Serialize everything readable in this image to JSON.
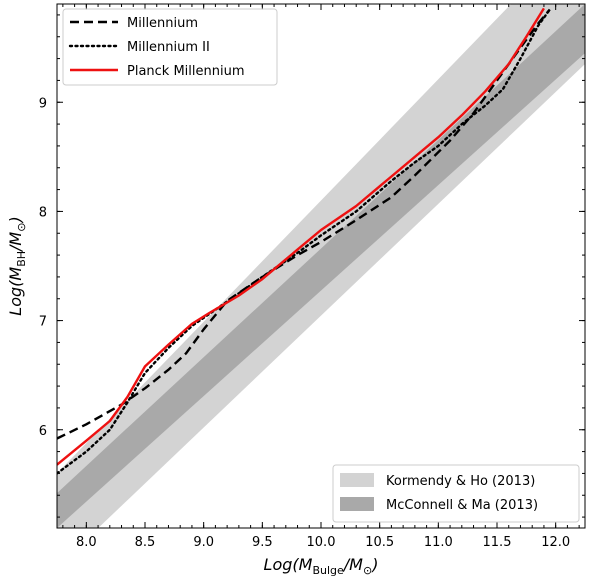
{
  "chart_data": {
    "type": "line",
    "xlabel": "Log(M_Bulge/M_⊙)",
    "ylabel": "Log(M_BH/M_⊙)",
    "xlim": [
      7.75,
      12.25
    ],
    "ylim": [
      5.1,
      9.9
    ],
    "x_ticks": [
      8.0,
      8.5,
      9.0,
      9.5,
      10.0,
      10.5,
      11.0,
      11.5,
      12.0
    ],
    "x_tick_labels": [
      "8.0",
      "8.5",
      "9.0",
      "9.5",
      "10.0",
      "10.5",
      "11.0",
      "11.5",
      "12.0"
    ],
    "y_ticks": [
      6,
      7,
      8,
      9
    ],
    "y_tick_labels": [
      "6",
      "7",
      "8",
      "9"
    ],
    "series": [
      {
        "name": "Millennium",
        "style": "dashed",
        "color": "#000000",
        "points": [
          [
            7.75,
            5.92
          ],
          [
            8.0,
            6.05
          ],
          [
            8.3,
            6.23
          ],
          [
            8.5,
            6.38
          ],
          [
            8.7,
            6.55
          ],
          [
            8.85,
            6.7
          ],
          [
            9.0,
            6.92
          ],
          [
            9.2,
            7.18
          ],
          [
            9.5,
            7.4
          ],
          [
            9.8,
            7.6
          ],
          [
            10.0,
            7.72
          ],
          [
            10.3,
            7.92
          ],
          [
            10.6,
            8.13
          ],
          [
            10.8,
            8.33
          ],
          [
            11.1,
            8.65
          ],
          [
            11.3,
            8.9
          ],
          [
            11.5,
            9.2
          ],
          [
            11.7,
            9.5
          ],
          [
            11.85,
            9.72
          ],
          [
            11.95,
            9.85
          ]
        ]
      },
      {
        "name": "Millennium II",
        "style": "dotted",
        "color": "#000000",
        "points": [
          [
            7.75,
            5.6
          ],
          [
            8.0,
            5.8
          ],
          [
            8.2,
            6.0
          ],
          [
            8.35,
            6.25
          ],
          [
            8.5,
            6.52
          ],
          [
            8.7,
            6.75
          ],
          [
            8.9,
            6.95
          ],
          [
            9.1,
            7.1
          ],
          [
            9.3,
            7.25
          ],
          [
            9.5,
            7.4
          ],
          [
            9.8,
            7.62
          ],
          [
            10.0,
            7.78
          ],
          [
            10.3,
            8.0
          ],
          [
            10.6,
            8.28
          ],
          [
            10.8,
            8.45
          ],
          [
            11.0,
            8.6
          ],
          [
            11.2,
            8.8
          ],
          [
            11.4,
            8.97
          ],
          [
            11.55,
            9.12
          ],
          [
            11.7,
            9.4
          ],
          [
            11.85,
            9.7
          ],
          [
            11.95,
            9.85
          ]
        ]
      },
      {
        "name": "Planck Millennium",
        "style": "solid",
        "color": "#ee1111",
        "points": [
          [
            7.75,
            5.68
          ],
          [
            8.0,
            5.9
          ],
          [
            8.2,
            6.08
          ],
          [
            8.35,
            6.3
          ],
          [
            8.5,
            6.58
          ],
          [
            8.7,
            6.78
          ],
          [
            8.9,
            6.97
          ],
          [
            9.05,
            7.07
          ],
          [
            9.3,
            7.23
          ],
          [
            9.5,
            7.38
          ],
          [
            9.8,
            7.65
          ],
          [
            10.0,
            7.83
          ],
          [
            10.3,
            8.05
          ],
          [
            10.6,
            8.32
          ],
          [
            10.8,
            8.5
          ],
          [
            11.0,
            8.68
          ],
          [
            11.2,
            8.88
          ],
          [
            11.4,
            9.1
          ],
          [
            11.6,
            9.35
          ],
          [
            11.75,
            9.6
          ],
          [
            11.9,
            9.86
          ]
        ]
      }
    ],
    "bands": [
      {
        "name": "Kormendy & Ho (2013)",
        "color": "#d3d3d3",
        "lower": [
          [
            7.75,
            4.74
          ],
          [
            12.25,
            9.35
          ]
        ],
        "upper": [
          [
            7.75,
            5.6
          ],
          [
            12.25,
            10.6
          ]
        ]
      },
      {
        "name": "McConnell & Ma (2013)",
        "color": "#a9a9a9",
        "lower": [
          [
            7.75,
            5.1
          ],
          [
            12.25,
            9.45
          ]
        ],
        "upper": [
          [
            7.75,
            5.42
          ],
          [
            12.25,
            9.9
          ]
        ]
      }
    ],
    "legend_top": [
      "Millennium",
      "Millennium II",
      "Planck Millennium"
    ],
    "legend_bottom": [
      "Kormendy & Ho (2013)",
      "McConnell & Ma (2013)"
    ],
    "legend_placement": [
      "top-left",
      "bottom-right"
    ],
    "grid": false
  }
}
